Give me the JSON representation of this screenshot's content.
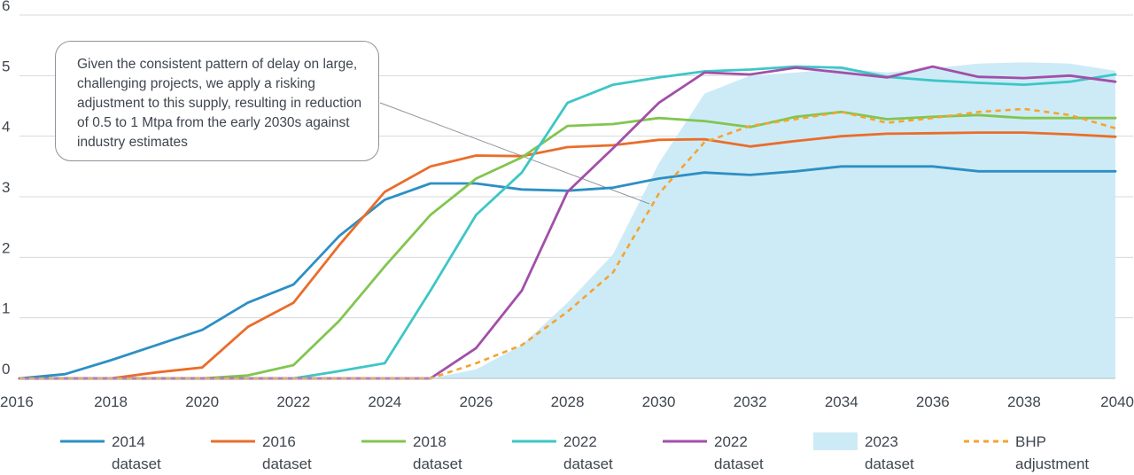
{
  "chart_data": {
    "type": "line",
    "x": [
      2016,
      2017,
      2018,
      2019,
      2020,
      2021,
      2022,
      2023,
      2024,
      2025,
      2026,
      2027,
      2028,
      2029,
      2030,
      2031,
      2032,
      2033,
      2034,
      2035,
      2036,
      2037,
      2038,
      2039,
      2040
    ],
    "xticks": [
      2016,
      2018,
      2020,
      2022,
      2024,
      2026,
      2028,
      2030,
      2032,
      2034,
      2036,
      2038,
      2040
    ],
    "yticks": [
      0,
      1,
      2,
      3,
      4,
      5,
      6
    ],
    "xlim": [
      2016,
      2040
    ],
    "ylim": [
      0,
      6
    ],
    "grid": "horizontal",
    "legend_position": "bottom",
    "annotation": "Given the consistent pattern of delay on large, challenging projects, we apply a risking adjustment to this supply, resulting in reduction of 0.5 to 1 Mtpa from the early 2030s against industry estimates",
    "annotation_target": [
      2030,
      2.9
    ],
    "series": [
      {
        "name": [
          "2014",
          "dataset"
        ],
        "style": "line",
        "color": "#2d8fc4",
        "values": [
          0,
          0.07,
          0.3,
          0.55,
          0.8,
          1.25,
          1.55,
          2.35,
          2.95,
          3.22,
          3.22,
          3.12,
          3.1,
          3.15,
          3.3,
          3.4,
          3.36,
          3.42,
          3.5,
          3.5,
          3.5,
          3.42,
          3.42,
          3.42,
          3.42
        ]
      },
      {
        "name": [
          "2016",
          "dataset"
        ],
        "style": "line",
        "color": "#ea6d2b",
        "values": [
          0,
          0,
          0,
          0.1,
          0.18,
          0.85,
          1.25,
          2.2,
          3.08,
          3.5,
          3.68,
          3.67,
          3.82,
          3.85,
          3.94,
          3.95,
          3.83,
          3.92,
          4.0,
          4.04,
          4.05,
          4.06,
          4.06,
          4.03,
          3.99
        ]
      },
      {
        "name": [
          "2018",
          "dataset"
        ],
        "style": "line",
        "color": "#82c550",
        "values": [
          0,
          0,
          0,
          0,
          0,
          0.05,
          0.22,
          0.95,
          1.85,
          2.7,
          3.3,
          3.65,
          4.17,
          4.2,
          4.3,
          4.25,
          4.15,
          4.32,
          4.4,
          4.28,
          4.32,
          4.35,
          4.3,
          4.3,
          4.3
        ]
      },
      {
        "name": [
          "2022",
          "dataset"
        ],
        "style": "line",
        "color": "#3ec6c6",
        "values": [
          0,
          0,
          0,
          0,
          0,
          0,
          0,
          0.12,
          0.25,
          1.45,
          2.7,
          3.4,
          4.55,
          4.85,
          4.97,
          5.07,
          5.1,
          5.15,
          5.13,
          4.98,
          4.92,
          4.88,
          4.85,
          4.9,
          5.02
        ]
      },
      {
        "name": [
          "2022",
          "dataset"
        ],
        "style": "line",
        "color": "#a24fa9",
        "values": [
          0,
          0,
          0,
          0,
          0,
          0,
          0,
          0,
          0,
          0,
          0.5,
          1.45,
          3.08,
          3.8,
          4.55,
          5.05,
          5.02,
          5.13,
          5.05,
          4.97,
          5.15,
          4.98,
          4.96,
          5.0,
          4.9
        ]
      },
      {
        "name": [
          "2023",
          "dataset"
        ],
        "style": "area",
        "color": "#cdebf6",
        "values": [
          0,
          0,
          0,
          0,
          0,
          0,
          0,
          0,
          0,
          0,
          0.15,
          0.55,
          1.25,
          2.05,
          3.55,
          4.7,
          5.0,
          5.05,
          5.12,
          5.05,
          5.12,
          5.2,
          5.22,
          5.2,
          5.08
        ]
      },
      {
        "name": [
          "BHP",
          "adjustment"
        ],
        "style": "dashed",
        "color": "#f5a331",
        "values": [
          0,
          0,
          0,
          0,
          0,
          0,
          0,
          0,
          0,
          0,
          0.25,
          0.55,
          1.1,
          1.75,
          3.05,
          3.9,
          4.17,
          4.28,
          4.4,
          4.22,
          4.3,
          4.4,
          4.45,
          4.35,
          4.13
        ]
      }
    ]
  }
}
